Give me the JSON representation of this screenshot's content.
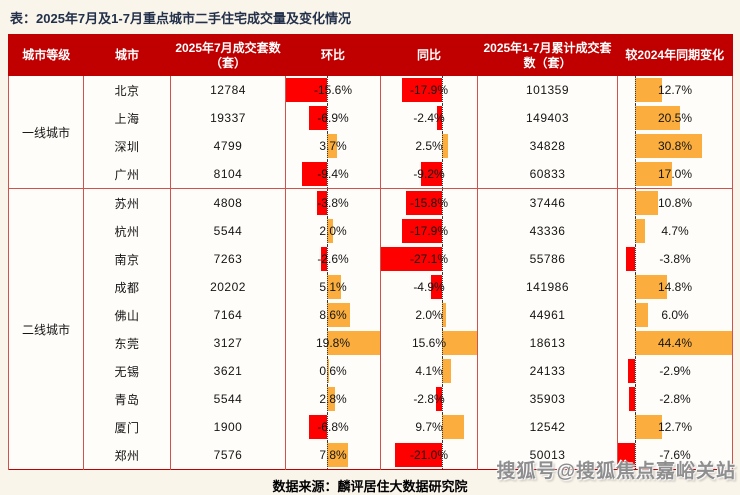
{
  "page": {
    "title": "表：2025年7月及1-7月重点城市二手住宅成交量及变化情况",
    "source_note": "数据来源：麟评居住大数据研究院",
    "watermark": "搜狐号@搜狐焦点嘉峪关站"
  },
  "colors": {
    "header_bg": "#c00000",
    "negative_bar": "#fe0000",
    "positive_bar": "#fbae3d",
    "grid_line": "#cf534c",
    "title_text": "#223049"
  },
  "table": {
    "headers": [
      "城市等级",
      "城市",
      "2025年7月成交套数（套）",
      "环比",
      "同比",
      "2025年1-7月累计成交套数（套）",
      "较2024年同期变化"
    ],
    "tiers": [
      {
        "label": "一线城市",
        "rows": [
          {
            "city": "北京",
            "july_volume": 12784,
            "mom": -15.6,
            "yoy": -17.9,
            "cum_volume": 101359,
            "vs2024": 12.7
          },
          {
            "city": "上海",
            "july_volume": 19337,
            "mom": -6.9,
            "yoy": -2.4,
            "cum_volume": 149403,
            "vs2024": 20.5
          },
          {
            "city": "深圳",
            "july_volume": 4799,
            "mom": 3.7,
            "yoy": 2.5,
            "cum_volume": 34828,
            "vs2024": 30.8
          },
          {
            "city": "广州",
            "july_volume": 8104,
            "mom": -9.4,
            "yoy": -9.2,
            "cum_volume": 60833,
            "vs2024": 17.0
          }
        ]
      },
      {
        "label": "二线城市",
        "rows": [
          {
            "city": "苏州",
            "july_volume": 4808,
            "mom": -3.8,
            "yoy": -15.8,
            "cum_volume": 37446,
            "vs2024": 10.8
          },
          {
            "city": "杭州",
            "july_volume": 5544,
            "mom": 2.0,
            "yoy": -17.9,
            "cum_volume": 43336,
            "vs2024": 4.7
          },
          {
            "city": "南京",
            "july_volume": 7263,
            "mom": -2.6,
            "yoy": -27.1,
            "cum_volume": 55786,
            "vs2024": -3.8
          },
          {
            "city": "成都",
            "july_volume": 20202,
            "mom": 5.1,
            "yoy": -4.9,
            "cum_volume": 141986,
            "vs2024": 14.8
          },
          {
            "city": "佛山",
            "july_volume": 7164,
            "mom": 8.6,
            "yoy": 2.0,
            "cum_volume": 44961,
            "vs2024": 6.0
          },
          {
            "city": "东莞",
            "july_volume": 3127,
            "mom": 19.8,
            "yoy": 15.6,
            "cum_volume": 18613,
            "vs2024": 44.4
          },
          {
            "city": "无锡",
            "july_volume": 3621,
            "mom": 0.6,
            "yoy": 4.1,
            "cum_volume": 24133,
            "vs2024": -2.9
          },
          {
            "city": "青岛",
            "july_volume": 5544,
            "mom": 2.8,
            "yoy": -2.8,
            "cum_volume": 35903,
            "vs2024": -2.8
          },
          {
            "city": "厦门",
            "july_volume": 1900,
            "mom": -6.8,
            "yoy": 9.7,
            "cum_volume": 12542,
            "vs2024": 12.7
          },
          {
            "city": "郑州",
            "july_volume": 7576,
            "mom": 7.8,
            "yoy": -21.0,
            "cum_volume": 50013,
            "vs2024": -7.6
          }
        ]
      }
    ]
  },
  "chart_data": {
    "type": "table",
    "title": "表：2025年7月及1-7月重点城市二手住宅成交量及变化情况",
    "columns": [
      "城市等级",
      "城市",
      "2025年7月成交套数（套）",
      "环比(%)",
      "同比(%)",
      "2025年1-7月累计成交套数（套）",
      "较2024年同期变化(%)"
    ],
    "rows": [
      [
        "一线城市",
        "北京",
        12784,
        -15.6,
        -17.9,
        101359,
        12.7
      ],
      [
        "一线城市",
        "上海",
        19337,
        -6.9,
        -2.4,
        149403,
        20.5
      ],
      [
        "一线城市",
        "深圳",
        4799,
        3.7,
        2.5,
        34828,
        30.8
      ],
      [
        "一线城市",
        "广州",
        8104,
        -9.4,
        -9.2,
        60833,
        17.0
      ],
      [
        "二线城市",
        "苏州",
        4808,
        -3.8,
        -15.8,
        37446,
        10.8
      ],
      [
        "二线城市",
        "杭州",
        5544,
        2.0,
        -17.9,
        43336,
        4.7
      ],
      [
        "二线城市",
        "南京",
        7263,
        -2.6,
        -27.1,
        55786,
        -3.8
      ],
      [
        "二线城市",
        "成都",
        20202,
        5.1,
        -4.9,
        141986,
        14.8
      ],
      [
        "二线城市",
        "佛山",
        7164,
        8.6,
        2.0,
        44961,
        6.0
      ],
      [
        "二线城市",
        "东莞",
        3127,
        19.8,
        15.6,
        18613,
        44.4
      ],
      [
        "二线城市",
        "无锡",
        3621,
        0.6,
        4.1,
        24133,
        -2.9
      ],
      [
        "二线城市",
        "青岛",
        5544,
        2.8,
        -2.8,
        35903,
        -2.8
      ],
      [
        "二线城市",
        "厦门",
        1900,
        -6.8,
        9.7,
        12542,
        12.7
      ],
      [
        "二线城市",
        "郑州",
        7576,
        7.8,
        -21.0,
        50013,
        -7.6
      ]
    ],
    "notes": "环比/同比/较2024年同期变化三列内嵌数据条：负值为红色条向左，正值为橙色条向右，黑色虚线为零轴；数据条按各列最小/最大值线性缩放。"
  }
}
